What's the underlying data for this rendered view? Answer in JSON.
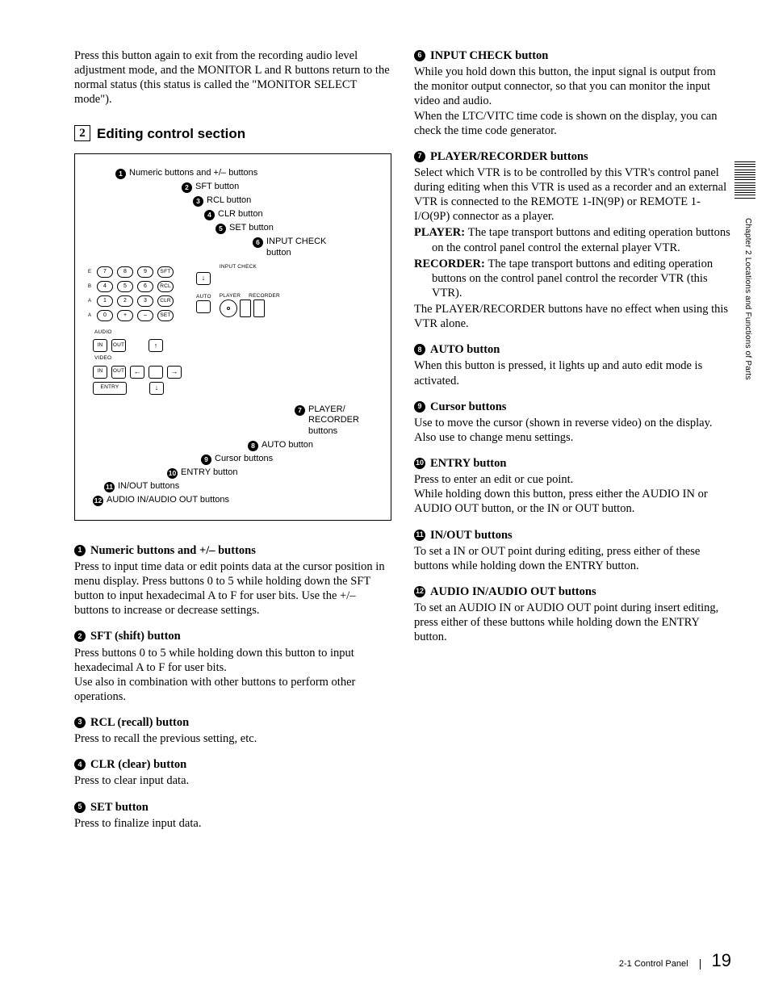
{
  "intro": "Press this button again to exit from the recording audio level adjustment mode, and the MONITOR L and R buttons return to the normal status (this status is called the \"MONITOR SELECT mode\").",
  "section": {
    "num": "2",
    "title": "Editing control section"
  },
  "diagram": {
    "top": [
      {
        "n": "1",
        "t": "Numeric buttons and +/– buttons"
      },
      {
        "n": "2",
        "t": "SFT button"
      },
      {
        "n": "3",
        "t": "RCL button"
      },
      {
        "n": "4",
        "t": "CLR button"
      },
      {
        "n": "5",
        "t": "SET button"
      },
      {
        "n": "6",
        "t": "INPUT CHECK button"
      }
    ],
    "bot": [
      {
        "n": "7",
        "t": "PLAYER/ RECORDER buttons"
      },
      {
        "n": "8",
        "t": "AUTO button"
      },
      {
        "n": "9",
        "t": "Cursor buttons"
      },
      {
        "n": "10",
        "t": "ENTRY button"
      },
      {
        "n": "11",
        "t": "IN/OUT buttons"
      },
      {
        "n": "12",
        "t": "AUDIO IN/AUDIO OUT buttons"
      }
    ],
    "panel": {
      "row1": [
        "7",
        "8",
        "9",
        "SFT"
      ],
      "row2": [
        "4",
        "5",
        "6",
        "RCL"
      ],
      "row3": [
        "1",
        "2",
        "3",
        "CLR"
      ],
      "row4": [
        "0",
        "+",
        "–",
        "SET"
      ],
      "sideLetters": [
        "",
        "E",
        "B",
        "A"
      ],
      "sideLetters2": [
        "",
        "F",
        "C",
        ""
      ],
      "sideLetters3": [
        "",
        "",
        "D",
        ""
      ],
      "inputCheck": "INPUT CHECK",
      "auto": "AUTO",
      "player": "PLAYER",
      "recorder": "RECORDER",
      "audio": "AUDIO",
      "video": "VIDEO",
      "in": "IN",
      "out": "OUT",
      "entry": "ENTRY",
      "arrows": {
        "u": "↑",
        "d": "↓",
        "l": "←",
        "r": "→",
        "c": "□"
      }
    }
  },
  "itemsLeft": [
    {
      "n": "1",
      "h": "Numeric buttons and +/– buttons",
      "b": "Press to input time data or edit points data at the cursor position in menu display. Press buttons 0 to 5 while holding down the SFT button to input hexadecimal A to F for user bits. Use the +/– buttons to increase or decrease settings."
    },
    {
      "n": "2",
      "h": "SFT (shift) button",
      "b": "Press buttons 0 to 5 while holding down this button to input hexadecimal A to F for user bits.\nUse also in combination with other buttons to perform other operations."
    },
    {
      "n": "3",
      "h": "RCL (recall) button",
      "b": "Press to recall the previous setting, etc."
    },
    {
      "n": "4",
      "h": "CLR (clear) button",
      "b": "Press to clear input data."
    },
    {
      "n": "5",
      "h": "SET button",
      "b": "Press to finalize input data."
    }
  ],
  "itemsRight": [
    {
      "n": "6",
      "h": "INPUT CHECK button",
      "b": "While you hold down this button, the input signal is output from the monitor output connector, so that you can monitor the input video and audio.\nWhen the LTC/VITC time code is shown on the display, you can check the time code generator."
    },
    {
      "n": "7",
      "h": "PLAYER/RECORDER buttons",
      "b": "Select which VTR is to be controlled by this VTR's control panel during editing when this VTR is used as a recorder and an external VTR is connected to the REMOTE 1-IN(9P) or REMOTE 1-I/O(9P) connector as a player.",
      "defs": [
        {
          "t": "PLAYER:",
          "d": "The tape transport buttons and editing operation buttons on the control panel control the external player VTR."
        },
        {
          "t": "RECORDER:",
          "d": "The tape transport buttons and editing operation buttons on the control panel control the recorder VTR (this VTR)."
        }
      ],
      "tail": "The PLAYER/RECORDER buttons have no effect when using this VTR alone."
    },
    {
      "n": "8",
      "h": "AUTO button",
      "b": "When this button is pressed, it lights up and auto edit mode is activated."
    },
    {
      "n": "9",
      "h": "Cursor buttons",
      "b": "Use to move the cursor (shown in reverse video) on the display. Also use to change menu settings."
    },
    {
      "n": "10",
      "h": "ENTRY button",
      "b": "Press to enter an edit or cue point.\nWhile holding down this button, press either the AUDIO IN or AUDIO OUT button, or the IN or OUT button."
    },
    {
      "n": "11",
      "h": "IN/OUT buttons",
      "b": "To set a IN or OUT point during editing, press either of these buttons while holding down the ENTRY button."
    },
    {
      "n": "12",
      "h": "AUDIO IN/AUDIO OUT buttons",
      "b": "To set an AUDIO IN or AUDIO OUT point during insert editing, press either of these buttons while holding down the ENTRY button."
    }
  ],
  "sideChapter": "Chapter 2  Locations and Functions of Parts",
  "footer": {
    "section": "2-1 Control Panel",
    "page": "19"
  }
}
